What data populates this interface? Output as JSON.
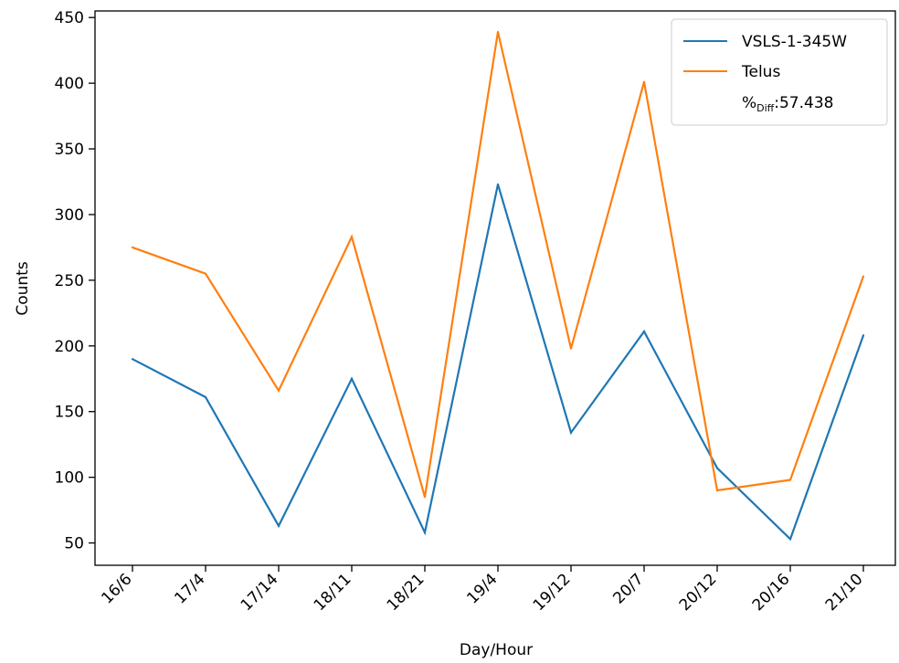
{
  "chart_data": {
    "type": "line",
    "categories": [
      "16/6",
      "17/4",
      "17/14",
      "18/11",
      "18/21",
      "19/4",
      "19/12",
      "20/7",
      "20/12",
      "20/16",
      "21/10"
    ],
    "series": [
      {
        "name": "VSLS-1-345W",
        "color": "#1f77b4",
        "values": [
          190,
          161,
          63,
          175,
          58,
          323,
          134,
          211,
          107,
          53,
          208
        ]
      },
      {
        "name": "Telus",
        "color": "#ff7f0e",
        "values": [
          275,
          255,
          166,
          283,
          85,
          439,
          198,
          401,
          90,
          98,
          253
        ]
      }
    ],
    "xlabel": "Day/Hour",
    "ylabel": "Counts",
    "ylim": [
      33,
      455
    ],
    "yticks": [
      "50",
      "100",
      "150",
      "200",
      "250",
      "300",
      "350",
      "400",
      "450"
    ],
    "legend": {
      "placement": "top-right",
      "diff_prefix": "%",
      "diff_subscript": "Diff",
      "diff_value": ":57.438"
    },
    "grid": false
  }
}
